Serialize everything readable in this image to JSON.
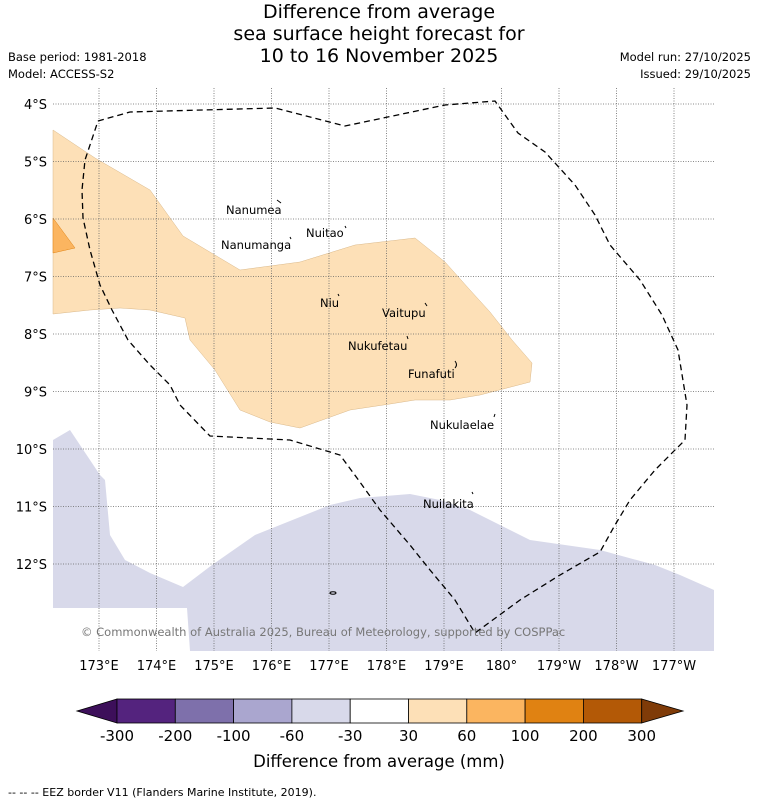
{
  "title": {
    "line1": "Difference from average",
    "line2": "sea surface height forecast for",
    "line3": "10 to 16 November 2025"
  },
  "meta": {
    "base_period": "Base period: 1981-2018",
    "model": "Model: ACCESS-S2",
    "model_run": "Model run: 27/10/2025",
    "issued": "Issued: 29/10/2025"
  },
  "map": {
    "lat_labels": [
      "4°S",
      "5°S",
      "6°S",
      "7°S",
      "8°S",
      "9°S",
      "10°S",
      "11°S",
      "12°S"
    ],
    "lon_labels": [
      "173°E",
      "174°E",
      "175°E",
      "176°E",
      "177°E",
      "178°E",
      "179°E",
      "180°",
      "179°W",
      "178°W",
      "177°W"
    ],
    "places": [
      "Nanumea",
      "Nuitao",
      "Nanumanga",
      "Niu",
      "Vaitupu",
      "Nukufetau",
      "Funafuti",
      "Nukulaelae",
      "Nuilakita"
    ],
    "copyright": "© Commonwealth of Australia 2025, Bureau of Meteorology, supported by COSPPac"
  },
  "colorbar": {
    "ticks": [
      "-300",
      "-200",
      "-100",
      "-60",
      "-30",
      "30",
      "60",
      "100",
      "200",
      "300"
    ],
    "colors": [
      "#3d0f5a",
      "#54237e",
      "#7e70ab",
      "#aaa6cf",
      "#d8d9ea",
      "#ffffff",
      "#fde0b7",
      "#fbb560",
      "#e08212",
      "#b35906",
      "#7f3b08"
    ],
    "label": "Difference from average (mm)"
  },
  "footer": "--  --  -- EEZ border V11 (Flanders Marine Institute, 2019)."
}
